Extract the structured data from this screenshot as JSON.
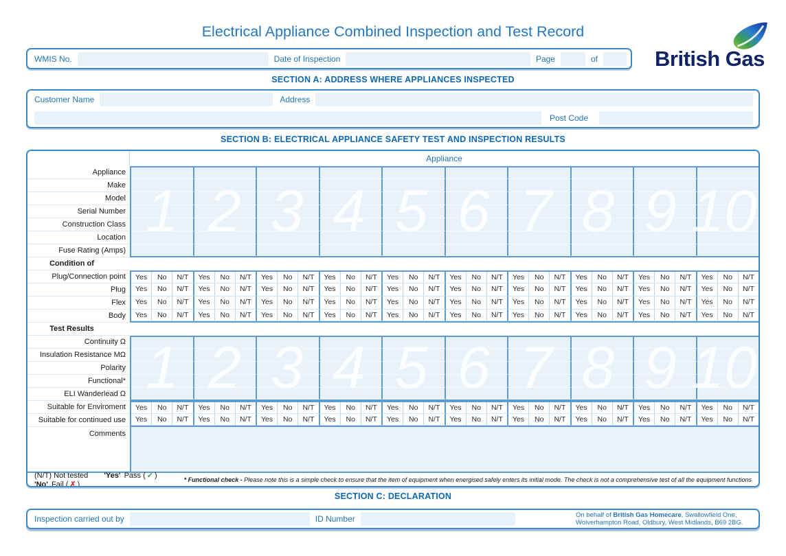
{
  "title": "Electrical Appliance Combined Inspection and Test Record",
  "brand": {
    "name": "British Gas"
  },
  "header": {
    "wmis_label": "WMIS No.",
    "date_label": "Date of Inspection",
    "page_label": "Page",
    "of_label": "of"
  },
  "section_a": {
    "title": "SECTION A: ADDRESS WHERE APPLIANCES INSPECTED",
    "customer_name_label": "Customer Name",
    "address_label": "Address",
    "post_code_label": "Post Code"
  },
  "section_b": {
    "title": "SECTION B: ELECTRICAL APPLIANCE SAFETY TEST AND INSPECTION RESULTS",
    "appliance_header": "Appliance",
    "columns": [
      "1",
      "2",
      "3",
      "4",
      "5",
      "6",
      "7",
      "8",
      "9",
      "10"
    ],
    "info_rows": [
      "Appliance",
      "Make",
      "Model",
      "Serial Number",
      "Construction Class",
      "Location",
      "Fuse Rating (Amps)"
    ],
    "condition_group_label": "Condition of",
    "condition_rows": [
      "Plug/Connection point",
      "Plug",
      "Flex",
      "Body"
    ],
    "test_group_label": "Test Results",
    "test_rows": [
      "Continuity Ω",
      "Insulation Resistance MΩ",
      "Polarity",
      "Functional*",
      "ELI Wanderlead Ω"
    ],
    "suitability_rows": [
      "Suitable for Enviroment",
      "Suitable for continued use"
    ],
    "comments_label": "Comments",
    "choice_options": [
      "Yes",
      "No",
      "N/T"
    ],
    "legend": {
      "not_tested": "(N/T) Not tested",
      "yes_word": "'Yes'",
      "pass_open": "Pass (",
      "check": "✓",
      "no_word": "'No'",
      "fail_open": "Fail (",
      "cross": "✗",
      "close": ")"
    },
    "footnote_bold": "* Functional check - ",
    "footnote_text": "Please note this is a simple check to ensure that the item of equipment when energised safely enters its initial mode. The check is not a comprehensive test of all the equipment functions"
  },
  "section_c": {
    "title": "SECTION C: DECLARATION",
    "inspector_label": "Inspection carried out by",
    "id_label": "ID Number",
    "behalf_prefix": "On behalf of ",
    "behalf_bold": "British Gas Homecare",
    "behalf_suffix": ", Swallowfield One, Wolverhampton Road, Oldbury, West Midlands, B69 2BG."
  },
  "colors": {
    "accent_blue": "#2173ba",
    "section_title_blue": "#0e68b1",
    "border_blue": "#3e88c5",
    "grid_blue": "#5b9bd0",
    "field_fill": "#e8f2fb",
    "brand_navy": "#0f2365",
    "pass_green": "#2e9e3e",
    "fail_red": "#e03131"
  }
}
